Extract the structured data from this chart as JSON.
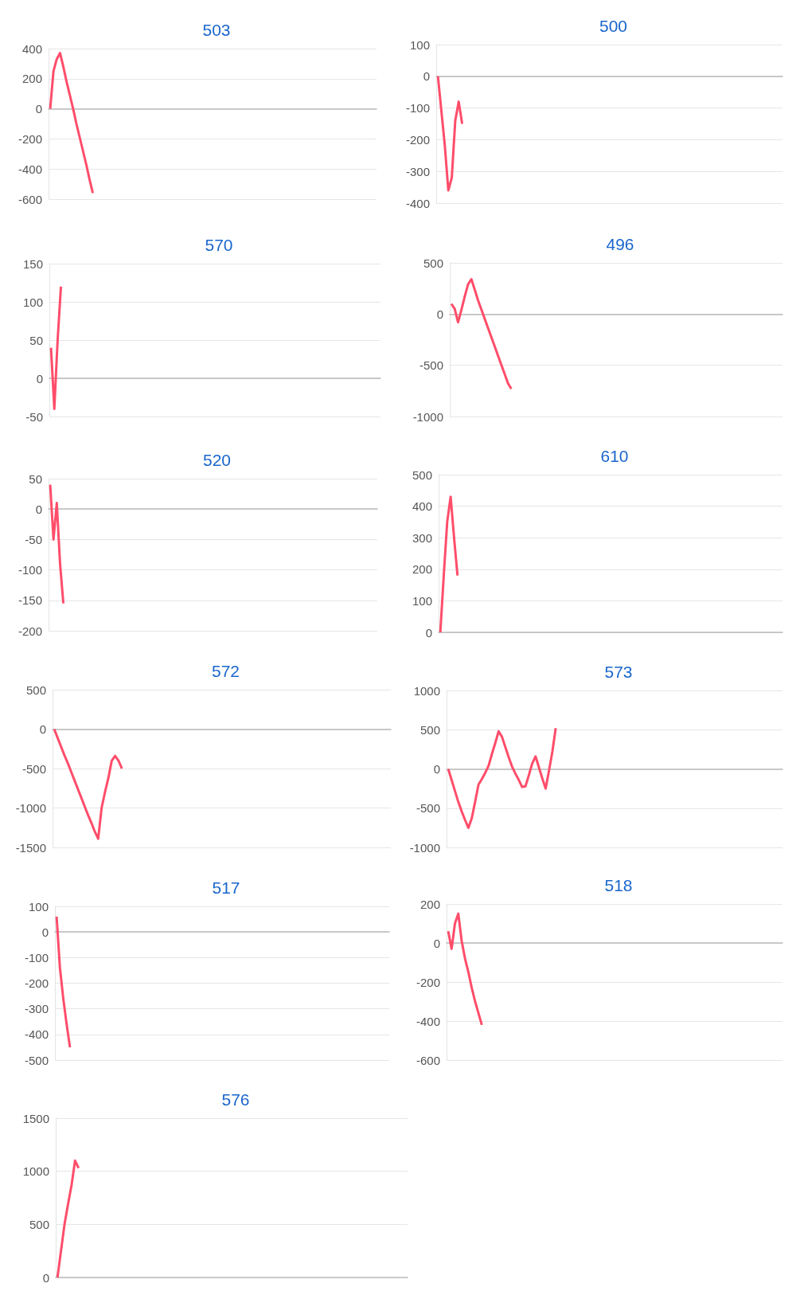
{
  "chart_data": [
    {
      "type": "line",
      "title": "503",
      "color": "#ff4d6a",
      "marker": "none",
      "grid": "y",
      "tick_labels": "y",
      "ylim": [
        -600,
        400
      ],
      "yticks": [
        -600,
        -400,
        -200,
        0,
        200,
        400
      ],
      "categories": [
        null,
        null,
        null,
        null,
        null,
        null,
        null,
        null,
        null,
        null,
        null,
        null,
        null,
        null,
        null,
        null,
        null,
        null,
        null,
        null,
        null,
        null,
        null,
        null,
        null,
        null,
        null,
        null,
        null,
        null,
        null,
        null,
        null,
        null,
        null,
        null,
        null,
        null,
        null,
        null,
        null,
        null,
        null,
        null,
        null,
        null,
        null,
        null,
        null,
        null,
        null,
        null,
        null,
        null,
        null,
        null,
        null,
        null,
        null,
        null,
        null,
        null,
        null,
        null,
        null,
        null,
        null,
        null,
        null,
        null,
        null,
        null,
        null,
        null,
        null,
        null,
        null,
        null,
        null,
        null,
        null,
        null,
        null,
        null,
        null,
        null,
        null,
        null,
        null,
        null,
        null,
        null,
        null,
        null,
        null,
        null,
        null,
        null,
        null,
        null
      ],
      "values": [
        0,
        250,
        330,
        370,
        280,
        180,
        90,
        0,
        -100,
        -190,
        -280,
        -370,
        -470,
        -560,
        null,
        null,
        null,
        null,
        null,
        null,
        null,
        null,
        null,
        null,
        null,
        null,
        null,
        null,
        null,
        null,
        null,
        null,
        null,
        null,
        null,
        null,
        null,
        null,
        null,
        null,
        null,
        null,
        null,
        null,
        null,
        null,
        null,
        null,
        null,
        null,
        null,
        null,
        null,
        null,
        null,
        null,
        null,
        null,
        null,
        null,
        null,
        null,
        null,
        null,
        null,
        null,
        null,
        null,
        null,
        null,
        null,
        null,
        null,
        null,
        null,
        null,
        null,
        null,
        null,
        null,
        null,
        null,
        null,
        null,
        null,
        null,
        null,
        null,
        null,
        null,
        null,
        null,
        null,
        null,
        null,
        null,
        null,
        null,
        null,
        null
      ]
    },
    {
      "type": "line",
      "title": "500",
      "color": "#ff4d6a",
      "marker": "none",
      "grid": "y",
      "tick_labels": "y",
      "ylim": [
        -400,
        100
      ],
      "yticks": [
        -400,
        -300,
        -200,
        -100,
        0,
        100
      ],
      "categories": [
        null,
        null,
        null,
        null,
        null,
        null,
        null,
        null,
        null,
        null,
        null,
        null,
        null,
        null,
        null,
        null,
        null,
        null,
        null,
        null,
        null,
        null,
        null,
        null,
        null,
        null,
        null,
        null,
        null,
        null,
        null,
        null,
        null,
        null,
        null,
        null,
        null,
        null,
        null,
        null,
        null,
        null,
        null,
        null,
        null,
        null,
        null,
        null,
        null,
        null,
        null,
        null,
        null,
        null,
        null,
        null,
        null,
        null,
        null,
        null,
        null,
        null,
        null,
        null,
        null,
        null,
        null,
        null,
        null,
        null,
        null,
        null,
        null,
        null,
        null,
        null,
        null,
        null,
        null,
        null,
        null,
        null,
        null,
        null,
        null,
        null,
        null,
        null,
        null,
        null,
        null,
        null,
        null,
        null,
        null,
        null,
        null,
        null,
        null,
        null
      ],
      "values": [
        0,
        -110,
        -220,
        -360,
        -320,
        -140,
        -80,
        -150,
        null,
        null,
        null,
        null,
        null,
        null,
        null,
        null,
        null,
        null,
        null,
        null,
        null,
        null,
        null,
        null,
        null,
        null,
        null,
        null,
        null,
        null,
        null,
        null,
        null,
        null,
        null,
        null,
        null,
        null,
        null,
        null,
        null,
        null,
        null,
        null,
        null,
        null,
        null,
        null,
        null,
        null,
        null,
        null,
        null,
        null,
        null,
        null,
        null,
        null,
        null,
        null,
        null,
        null,
        null,
        null,
        null,
        null,
        null,
        null,
        null,
        null,
        null,
        null,
        null,
        null,
        null,
        null,
        null,
        null,
        null,
        null,
        null,
        null,
        null,
        null,
        null,
        null,
        null,
        null,
        null,
        null,
        null,
        null,
        null,
        null,
        null,
        null,
        null,
        null,
        null,
        null
      ]
    },
    {
      "type": "line",
      "title": "570",
      "color": "#ff4d6a",
      "marker": "none",
      "grid": "y",
      "tick_labels": "y",
      "ylim": [
        -50,
        150
      ],
      "yticks": [
        -50,
        0,
        50,
        100,
        150
      ],
      "categories": [
        null,
        null,
        null,
        null,
        null,
        null,
        null,
        null,
        null,
        null,
        null,
        null,
        null,
        null,
        null,
        null,
        null,
        null,
        null,
        null,
        null,
        null,
        null,
        null,
        null,
        null,
        null,
        null,
        null,
        null,
        null,
        null,
        null,
        null,
        null,
        null,
        null,
        null,
        null,
        null,
        null,
        null,
        null,
        null,
        null,
        null,
        null,
        null,
        null,
        null,
        null,
        null,
        null,
        null,
        null,
        null,
        null,
        null,
        null,
        null,
        null,
        null,
        null,
        null,
        null,
        null,
        null,
        null,
        null,
        null,
        null,
        null,
        null,
        null,
        null,
        null,
        null,
        null,
        null,
        null,
        null,
        null,
        null,
        null,
        null,
        null,
        null,
        null,
        null,
        null,
        null,
        null,
        null,
        null,
        null,
        null,
        null,
        null,
        null,
        null
      ],
      "values": [
        40,
        -40,
        50,
        120,
        null,
        null,
        null,
        null,
        null,
        null,
        null,
        null,
        null,
        null,
        null,
        null,
        null,
        null,
        null,
        null,
        null,
        null,
        null,
        null,
        null,
        null,
        null,
        null,
        null,
        null,
        null,
        null,
        null,
        null,
        null,
        null,
        null,
        null,
        null,
        null,
        null,
        null,
        null,
        null,
        null,
        null,
        null,
        null,
        null,
        null,
        null,
        null,
        null,
        null,
        null,
        null,
        null,
        null,
        null,
        null,
        null,
        null,
        null,
        null,
        null,
        null,
        null,
        null,
        null,
        null,
        null,
        null,
        null,
        null,
        null,
        null,
        null,
        null,
        null,
        null,
        null,
        null,
        null,
        null,
        null,
        null,
        null,
        null,
        null,
        null,
        null,
        null,
        null,
        null,
        null,
        null,
        null,
        null,
        null,
        null
      ]
    },
    {
      "type": "line",
      "title": "496",
      "color": "#ff4d6a",
      "marker": "none",
      "grid": "y",
      "tick_labels": "y",
      "ylim": [
        -1000,
        500
      ],
      "yticks": [
        -1000,
        -500,
        0,
        500
      ],
      "categories": [
        null,
        null,
        null,
        null,
        null,
        null,
        null,
        null,
        null,
        null,
        null,
        null,
        null,
        null,
        null,
        null,
        null,
        null,
        null,
        null,
        null,
        null,
        null,
        null,
        null,
        null,
        null,
        null,
        null,
        null,
        null,
        null,
        null,
        null,
        null,
        null,
        null,
        null,
        null,
        null,
        null,
        null,
        null,
        null,
        null,
        null,
        null,
        null,
        null,
        null,
        null,
        null,
        null,
        null,
        null,
        null,
        null,
        null,
        null,
        null,
        null,
        null,
        null,
        null,
        null,
        null,
        null,
        null,
        null,
        null,
        null,
        null,
        null,
        null,
        null,
        null,
        null,
        null,
        null,
        null,
        null,
        null,
        null,
        null,
        null,
        null,
        null,
        null,
        null,
        null,
        null,
        null,
        null,
        null,
        null,
        null,
        null,
        null,
        null,
        null
      ],
      "values": [
        100,
        50,
        -80,
        40,
        170,
        290,
        340,
        240,
        135,
        45,
        -45,
        -135,
        -225,
        -315,
        -405,
        -495,
        -585,
        -675,
        -730,
        null,
        null,
        null,
        null,
        null,
        null,
        null,
        null,
        null,
        null,
        null,
        null,
        null,
        null,
        null,
        null,
        null,
        null,
        null,
        null,
        null,
        null,
        null,
        null,
        null,
        null,
        null,
        null,
        null,
        null,
        null,
        null,
        null,
        null,
        null,
        null,
        null,
        null,
        null,
        null,
        null,
        null,
        null,
        null,
        null,
        null,
        null,
        null,
        null,
        null,
        null,
        null,
        null,
        null,
        null,
        null,
        null,
        null,
        null,
        null,
        null,
        null,
        null,
        null,
        null,
        null,
        null,
        null,
        null,
        null,
        null,
        null,
        null,
        null,
        null,
        null,
        null,
        null,
        null,
        null,
        null
      ]
    },
    {
      "type": "line",
      "title": "520",
      "color": "#ff4d6a",
      "marker": "none",
      "grid": "y",
      "tick_labels": "y",
      "ylim": [
        -200,
        50
      ],
      "yticks": [
        -200,
        -150,
        -100,
        -50,
        0,
        50
      ],
      "categories": [
        null,
        null,
        null,
        null,
        null,
        null,
        null,
        null,
        null,
        null,
        null,
        null,
        null,
        null,
        null,
        null,
        null,
        null,
        null,
        null,
        null,
        null,
        null,
        null,
        null,
        null,
        null,
        null,
        null,
        null,
        null,
        null,
        null,
        null,
        null,
        null,
        null,
        null,
        null,
        null,
        null,
        null,
        null,
        null,
        null,
        null,
        null,
        null,
        null,
        null,
        null,
        null,
        null,
        null,
        null,
        null,
        null,
        null,
        null,
        null,
        null,
        null,
        null,
        null,
        null,
        null,
        null,
        null,
        null,
        null,
        null,
        null,
        null,
        null,
        null,
        null,
        null,
        null,
        null,
        null,
        null,
        null,
        null,
        null,
        null,
        null,
        null,
        null,
        null,
        null,
        null,
        null,
        null,
        null,
        null,
        null,
        null,
        null,
        null,
        null
      ],
      "values": [
        40,
        -50,
        10,
        -90,
        -155,
        null,
        null,
        null,
        null,
        null,
        null,
        null,
        null,
        null,
        null,
        null,
        null,
        null,
        null,
        null,
        null,
        null,
        null,
        null,
        null,
        null,
        null,
        null,
        null,
        null,
        null,
        null,
        null,
        null,
        null,
        null,
        null,
        null,
        null,
        null,
        null,
        null,
        null,
        null,
        null,
        null,
        null,
        null,
        null,
        null,
        null,
        null,
        null,
        null,
        null,
        null,
        null,
        null,
        null,
        null,
        null,
        null,
        null,
        null,
        null,
        null,
        null,
        null,
        null,
        null,
        null,
        null,
        null,
        null,
        null,
        null,
        null,
        null,
        null,
        null,
        null,
        null,
        null,
        null,
        null,
        null,
        null,
        null,
        null,
        null,
        null,
        null,
        null,
        null,
        null,
        null,
        null,
        null,
        null,
        null
      ]
    },
    {
      "type": "line",
      "title": "610",
      "color": "#ff4d6a",
      "marker": "none",
      "grid": "y",
      "tick_labels": "y",
      "ylim": [
        0,
        500
      ],
      "yticks": [
        0,
        100,
        200,
        300,
        400,
        500
      ],
      "categories": [
        null,
        null,
        null,
        null,
        null,
        null,
        null,
        null,
        null,
        null,
        null,
        null,
        null,
        null,
        null,
        null,
        null,
        null,
        null,
        null,
        null,
        null,
        null,
        null,
        null,
        null,
        null,
        null,
        null,
        null,
        null,
        null,
        null,
        null,
        null,
        null,
        null,
        null,
        null,
        null,
        null,
        null,
        null,
        null,
        null,
        null,
        null,
        null,
        null,
        null,
        null,
        null,
        null,
        null,
        null,
        null,
        null,
        null,
        null,
        null,
        null,
        null,
        null,
        null,
        null,
        null,
        null,
        null,
        null,
        null,
        null,
        null,
        null,
        null,
        null,
        null,
        null,
        null,
        null,
        null,
        null,
        null,
        null,
        null,
        null,
        null,
        null,
        null,
        null,
        null,
        null,
        null,
        null,
        null,
        null,
        null,
        null,
        null,
        null,
        null
      ],
      "values": [
        0,
        180,
        350,
        430,
        300,
        180,
        null,
        null,
        null,
        null,
        null,
        null,
        null,
        null,
        null,
        null,
        null,
        null,
        null,
        null,
        null,
        null,
        null,
        null,
        null,
        null,
        null,
        null,
        null,
        null,
        null,
        null,
        null,
        null,
        null,
        null,
        null,
        null,
        null,
        null,
        null,
        null,
        null,
        null,
        null,
        null,
        null,
        null,
        null,
        null,
        null,
        null,
        null,
        null,
        null,
        null,
        null,
        null,
        null,
        null,
        null,
        null,
        null,
        null,
        null,
        null,
        null,
        null,
        null,
        null,
        null,
        null,
        null,
        null,
        null,
        null,
        null,
        null,
        null,
        null,
        null,
        null,
        null,
        null,
        null,
        null,
        null,
        null,
        null,
        null,
        null,
        null,
        null,
        null,
        null,
        null,
        null,
        null,
        null,
        null
      ]
    },
    {
      "type": "line",
      "title": "572",
      "color": "#ff4d6a",
      "marker": "none",
      "grid": "y",
      "tick_labels": "y",
      "ylim": [
        -1500,
        500
      ],
      "yticks": [
        -1500,
        -1000,
        -500,
        0,
        500
      ],
      "categories": [
        null,
        null,
        null,
        null,
        null,
        null,
        null,
        null,
        null,
        null,
        null,
        null,
        null,
        null,
        null,
        null,
        null,
        null,
        null,
        null,
        null,
        null,
        null,
        null,
        null,
        null,
        null,
        null,
        null,
        null,
        null,
        null,
        null,
        null,
        null,
        null,
        null,
        null,
        null,
        null,
        null,
        null,
        null,
        null,
        null,
        null,
        null,
        null,
        null,
        null,
        null,
        null,
        null,
        null,
        null,
        null,
        null,
        null,
        null,
        null,
        null,
        null,
        null,
        null,
        null,
        null,
        null,
        null,
        null,
        null,
        null,
        null,
        null,
        null,
        null,
        null,
        null,
        null,
        null,
        null,
        null,
        null,
        null,
        null,
        null,
        null,
        null,
        null,
        null,
        null,
        null,
        null,
        null,
        null,
        null,
        null,
        null,
        null,
        null,
        null
      ],
      "values": [
        0,
        -110,
        -220,
        -330,
        -430,
        -540,
        -650,
        -760,
        -870,
        -980,
        -1090,
        -1190,
        -1300,
        -1390,
        -1000,
        -800,
        -620,
        -400,
        -340,
        -400,
        -500,
        null,
        null,
        null,
        null,
        null,
        null,
        null,
        null,
        null,
        null,
        null,
        null,
        null,
        null,
        null,
        null,
        null,
        null,
        null,
        null,
        null,
        null,
        null,
        null,
        null,
        null,
        null,
        null,
        null,
        null,
        null,
        null,
        null,
        null,
        null,
        null,
        null,
        null,
        null,
        null,
        null,
        null,
        null,
        null,
        null,
        null,
        null,
        null,
        null,
        null,
        null,
        null,
        null,
        null,
        null,
        null,
        null,
        null,
        null,
        null,
        null,
        null,
        null,
        null,
        null,
        null,
        null,
        null,
        null,
        null,
        null,
        null,
        null,
        null,
        null,
        null,
        null,
        null,
        null
      ]
    },
    {
      "type": "line",
      "title": "573",
      "color": "#ff4d6a",
      "marker": "none",
      "grid": "y",
      "tick_labels": "y",
      "ylim": [
        -1000,
        1000
      ],
      "yticks": [
        -1000,
        -500,
        0,
        500,
        1000
      ],
      "categories": [
        null,
        null,
        null,
        null,
        null,
        null,
        null,
        null,
        null,
        null,
        null,
        null,
        null,
        null,
        null,
        null,
        null,
        null,
        null,
        null,
        null,
        null,
        null,
        null,
        null,
        null,
        null,
        null,
        null,
        null,
        null,
        null,
        null,
        null,
        null,
        null,
        null,
        null,
        null,
        null,
        null,
        null,
        null,
        null,
        null,
        null,
        null,
        null,
        null,
        null,
        null,
        null,
        null,
        null,
        null,
        null,
        null,
        null,
        null,
        null,
        null,
        null,
        null,
        null,
        null,
        null,
        null,
        null,
        null,
        null,
        null,
        null,
        null,
        null,
        null,
        null,
        null,
        null,
        null,
        null,
        null,
        null,
        null,
        null,
        null,
        null,
        null,
        null,
        null,
        null,
        null,
        null,
        null,
        null,
        null,
        null,
        null,
        null,
        null,
        null
      ],
      "values": [
        0,
        -140,
        -280,
        -420,
        -540,
        -650,
        -750,
        -630,
        -420,
        -200,
        -130,
        -50,
        40,
        190,
        330,
        480,
        410,
        280,
        150,
        30,
        -60,
        -140,
        -230,
        -220,
        -80,
        70,
        160,
        20,
        -120,
        -250,
        -20,
        220,
        520,
        null,
        null,
        null,
        null,
        null,
        null,
        null,
        null,
        null,
        null,
        null,
        null,
        null,
        null,
        null,
        null,
        null,
        null,
        null,
        null,
        null,
        null,
        null,
        null,
        null,
        null,
        null,
        null,
        null,
        null,
        null,
        null,
        null,
        null,
        null,
        null,
        null,
        null,
        null,
        null,
        null,
        null,
        null,
        null,
        null,
        null,
        null,
        null,
        null,
        null,
        null,
        null,
        null,
        null,
        null,
        null,
        null,
        null,
        null,
        null,
        null,
        null,
        null,
        null,
        null,
        null,
        null
      ]
    },
    {
      "type": "line",
      "title": "517",
      "color": "#ff4d6a",
      "marker": "none",
      "grid": "y",
      "tick_labels": "y",
      "ylim": [
        -500,
        100
      ],
      "yticks": [
        -500,
        -400,
        -300,
        -200,
        -100,
        0,
        100
      ],
      "categories": [
        null,
        null,
        null,
        null,
        null,
        null,
        null,
        null,
        null,
        null,
        null,
        null,
        null,
        null,
        null,
        null,
        null,
        null,
        null,
        null,
        null,
        null,
        null,
        null,
        null,
        null,
        null,
        null,
        null,
        null,
        null,
        null,
        null,
        null,
        null,
        null,
        null,
        null,
        null,
        null,
        null,
        null,
        null,
        null,
        null,
        null,
        null,
        null,
        null,
        null,
        null,
        null,
        null,
        null,
        null,
        null,
        null,
        null,
        null,
        null,
        null,
        null,
        null,
        null,
        null,
        null,
        null,
        null,
        null,
        null,
        null,
        null,
        null,
        null,
        null,
        null,
        null,
        null,
        null,
        null,
        null,
        null,
        null,
        null,
        null,
        null,
        null,
        null,
        null,
        null,
        null,
        null,
        null,
        null,
        null,
        null,
        null,
        null,
        null,
        null
      ],
      "values": [
        60,
        -140,
        -260,
        -360,
        -450,
        null,
        null,
        null,
        null,
        null,
        null,
        null,
        null,
        null,
        null,
        null,
        null,
        null,
        null,
        null,
        null,
        null,
        null,
        null,
        null,
        null,
        null,
        null,
        null,
        null,
        null,
        null,
        null,
        null,
        null,
        null,
        null,
        null,
        null,
        null,
        null,
        null,
        null,
        null,
        null,
        null,
        null,
        null,
        null,
        null,
        null,
        null,
        null,
        null,
        null,
        null,
        null,
        null,
        null,
        null,
        null,
        null,
        null,
        null,
        null,
        null,
        null,
        null,
        null,
        null,
        null,
        null,
        null,
        null,
        null,
        null,
        null,
        null,
        null,
        null,
        null,
        null,
        null,
        null,
        null,
        null,
        null,
        null,
        null,
        null,
        null,
        null,
        null,
        null,
        null,
        null,
        null,
        null,
        null,
        null
      ]
    },
    {
      "type": "line",
      "title": "518",
      "color": "#ff4d6a",
      "marker": "none",
      "grid": "y",
      "tick_labels": "y",
      "ylim": [
        -600,
        200
      ],
      "yticks": [
        -600,
        -400,
        -200,
        0,
        200
      ],
      "categories": [
        null,
        null,
        null,
        null,
        null,
        null,
        null,
        null,
        null,
        null,
        null,
        null,
        null,
        null,
        null,
        null,
        null,
        null,
        null,
        null,
        null,
        null,
        null,
        null,
        null,
        null,
        null,
        null,
        null,
        null,
        null,
        null,
        null,
        null,
        null,
        null,
        null,
        null,
        null,
        null,
        null,
        null,
        null,
        null,
        null,
        null,
        null,
        null,
        null,
        null,
        null,
        null,
        null,
        null,
        null,
        null,
        null,
        null,
        null,
        null,
        null,
        null,
        null,
        null,
        null,
        null,
        null,
        null,
        null,
        null,
        null,
        null,
        null,
        null,
        null,
        null,
        null,
        null,
        null,
        null,
        null,
        null,
        null,
        null,
        null,
        null,
        null,
        null,
        null,
        null,
        null,
        null,
        null,
        null,
        null,
        null,
        null,
        null,
        null,
        null
      ],
      "values": [
        60,
        -30,
        100,
        150,
        10,
        -80,
        -150,
        -230,
        -300,
        -360,
        -420,
        null,
        null,
        null,
        null,
        null,
        null,
        null,
        null,
        null,
        null,
        null,
        null,
        null,
        null,
        null,
        null,
        null,
        null,
        null,
        null,
        null,
        null,
        null,
        null,
        null,
        null,
        null,
        null,
        null,
        null,
        null,
        null,
        null,
        null,
        null,
        null,
        null,
        null,
        null,
        null,
        null,
        null,
        null,
        null,
        null,
        null,
        null,
        null,
        null,
        null,
        null,
        null,
        null,
        null,
        null,
        null,
        null,
        null,
        null,
        null,
        null,
        null,
        null,
        null,
        null,
        null,
        null,
        null,
        null,
        null,
        null,
        null,
        null,
        null,
        null,
        null,
        null,
        null,
        null,
        null,
        null,
        null,
        null,
        null,
        null,
        null,
        null,
        null,
        null
      ]
    },
    {
      "type": "line",
      "title": "576",
      "color": "#ff4d6a",
      "marker": "none",
      "grid": "y",
      "tick_labels": "y",
      "ylim": [
        0,
        1500
      ],
      "yticks": [
        0,
        500,
        1000,
        1500
      ],
      "categories": [
        null,
        null,
        null,
        null,
        null,
        null,
        null,
        null,
        null,
        null,
        null,
        null,
        null,
        null,
        null,
        null,
        null,
        null,
        null,
        null,
        null,
        null,
        null,
        null,
        null,
        null,
        null,
        null,
        null,
        null,
        null,
        null,
        null,
        null,
        null,
        null,
        null,
        null,
        null,
        null,
        null,
        null,
        null,
        null,
        null,
        null,
        null,
        null,
        null,
        null,
        null,
        null,
        null,
        null,
        null,
        null,
        null,
        null,
        null,
        null,
        null,
        null,
        null,
        null,
        null,
        null,
        null,
        null,
        null,
        null,
        null,
        null,
        null,
        null,
        null,
        null,
        null,
        null,
        null,
        null,
        null,
        null,
        null,
        null,
        null,
        null,
        null,
        null,
        null,
        null,
        null,
        null,
        null,
        null,
        null,
        null,
        null,
        null,
        null,
        null
      ],
      "values": [
        0,
        250,
        500,
        690,
        870,
        1100,
        1030,
        null,
        null,
        null,
        null,
        null,
        null,
        null,
        null,
        null,
        null,
        null,
        null,
        null,
        null,
        null,
        null,
        null,
        null,
        null,
        null,
        null,
        null,
        null,
        null,
        null,
        null,
        null,
        null,
        null,
        null,
        null,
        null,
        null,
        null,
        null,
        null,
        null,
        null,
        null,
        null,
        null,
        null,
        null,
        null,
        null,
        null,
        null,
        null,
        null,
        null,
        null,
        null,
        null,
        null,
        null,
        null,
        null,
        null,
        null,
        null,
        null,
        null,
        null,
        null,
        null,
        null,
        null,
        null,
        null,
        null,
        null,
        null,
        null,
        null,
        null,
        null,
        null,
        null,
        null,
        null,
        null,
        null,
        null,
        null,
        null,
        null,
        null,
        null,
        null,
        null,
        null,
        null,
        null
      ]
    }
  ]
}
